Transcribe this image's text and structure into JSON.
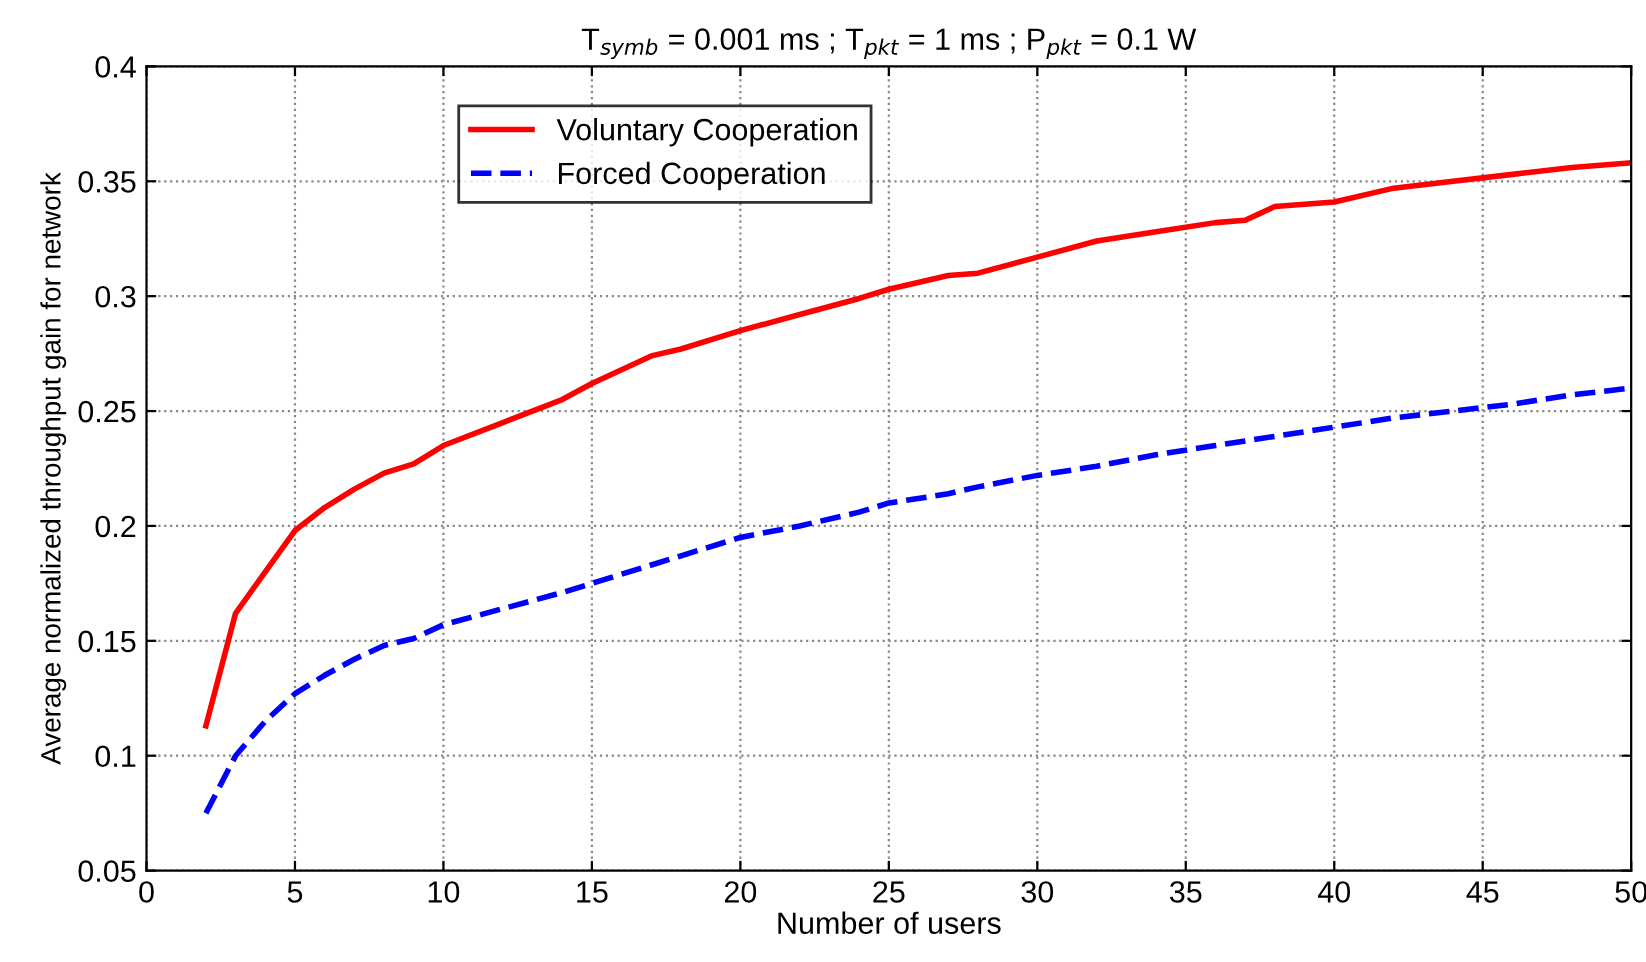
{
  "chart_data": {
    "type": "line",
    "title": "T$_{symb}$ = 0.001 ms ; T$_{pkt}$ = 1 ms ; P$_{pkt}$ = 0.1 W",
    "xlabel": "Number of users",
    "ylabel": "Average normalized throughput gain for network",
    "xlim": [
      0,
      50
    ],
    "ylim": [
      0.05,
      0.4
    ],
    "xticks": [
      0,
      5,
      10,
      15,
      20,
      25,
      30,
      35,
      40,
      45,
      50
    ],
    "yticks": [
      0.05,
      0.1,
      0.15,
      0.2,
      0.25,
      0.3,
      0.35,
      0.4
    ],
    "grid": true,
    "legend": "top left",
    "series": [
      {
        "name": "Voluntary Cooperation",
        "color": "#ff0000",
        "line_style": "solid",
        "x": [
          2,
          3,
          4,
          5,
          6,
          7,
          8,
          9,
          10,
          12,
          14,
          15,
          17,
          18,
          20,
          22,
          24,
          25,
          27,
          28,
          30,
          32,
          34,
          36,
          37,
          38,
          40,
          42,
          44,
          46,
          48,
          50
        ],
        "values": [
          0.113,
          0.162,
          0.18,
          0.198,
          0.208,
          0.216,
          0.223,
          0.227,
          0.235,
          0.245,
          0.255,
          0.262,
          0.274,
          0.277,
          0.285,
          0.292,
          0.299,
          0.303,
          0.309,
          0.31,
          0.317,
          0.324,
          0.328,
          0.332,
          0.333,
          0.339,
          0.341,
          0.347,
          0.35,
          0.353,
          0.356,
          0.358
        ]
      },
      {
        "name": "Forced Cooperation",
        "color": "#0000ff",
        "line_style": "dashed",
        "x": [
          2,
          3,
          4,
          5,
          6,
          7,
          8,
          9,
          10,
          12,
          14,
          15,
          17,
          18,
          20,
          22,
          24,
          25,
          27,
          28,
          30,
          32,
          34,
          36,
          38,
          40,
          42,
          44,
          46,
          48,
          50
        ],
        "values": [
          0.075,
          0.1,
          0.115,
          0.127,
          0.135,
          0.142,
          0.148,
          0.151,
          0.157,
          0.164,
          0.171,
          0.175,
          0.183,
          0.187,
          0.195,
          0.2,
          0.206,
          0.21,
          0.214,
          0.217,
          0.222,
          0.226,
          0.231,
          0.235,
          0.239,
          0.243,
          0.247,
          0.25,
          0.253,
          0.257,
          0.26
        ]
      }
    ]
  }
}
